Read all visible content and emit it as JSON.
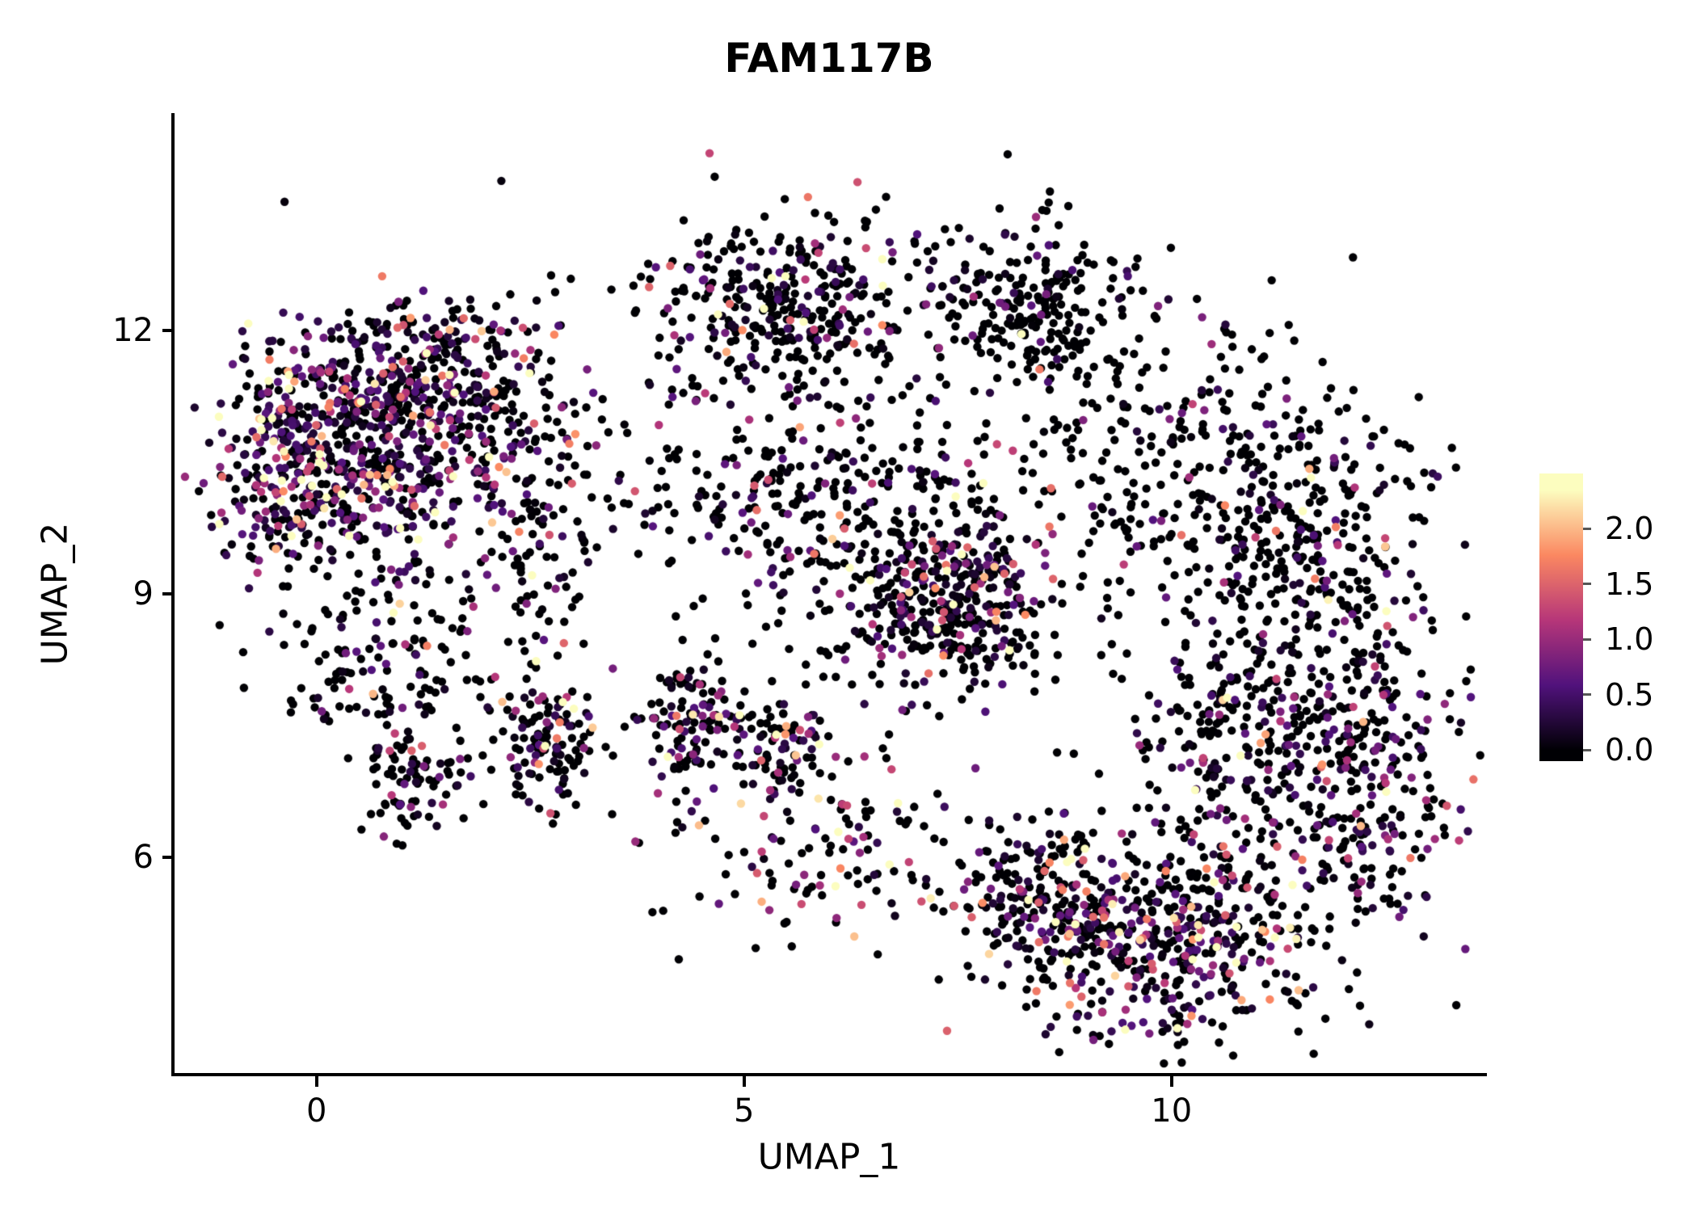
{
  "chart_data": {
    "type": "scatter",
    "title": "FAM117B",
    "xlabel": "UMAP_1",
    "ylabel": "UMAP_2",
    "xlim": [
      -1.68,
      13.67
    ],
    "ylim": [
      3.53,
      14.47
    ],
    "xtick_values": [
      0,
      5,
      10
    ],
    "xtick_labels": [
      "0",
      "5",
      "10"
    ],
    "ytick_values": [
      12,
      9,
      6
    ],
    "ytick_labels": [
      "12",
      "9",
      "6"
    ],
    "grid": false,
    "legend_position": "right",
    "color_encodes": "FAM117B expression level",
    "colormap": {
      "name": "magma",
      "anchors": [
        {
          "t": 0.0,
          "c": "#000004"
        },
        {
          "t": 0.25,
          "c": "#51127C"
        },
        {
          "t": 0.5,
          "c": "#B63679"
        },
        {
          "t": 0.75,
          "c": "#FB8861"
        },
        {
          "t": 1.0,
          "c": "#FCFDBF"
        }
      ]
    },
    "colorbar": {
      "tick_labels": [
        "2.0",
        "1.5",
        "1.0",
        "0.5",
        "0.0"
      ],
      "tick_values": [
        2.0,
        1.5,
        1.0,
        0.5,
        0.0
      ],
      "value_range": [
        -0.1,
        2.5
      ],
      "value_max": 2.35
    },
    "points": {
      "radius_px": 5.2,
      "seed": 42,
      "total_approx": 5110,
      "clusters": [
        {
          "name": "left-main-core",
          "cx": 0.7,
          "cy": 10.7,
          "sx": 0.8,
          "sy": 0.7,
          "n": 620,
          "zero_frac": 0.42,
          "expr_mean": 0.75
        },
        {
          "name": "left-west-edge",
          "cx": -0.5,
          "cy": 10.5,
          "sx": 0.35,
          "sy": 0.6,
          "n": 170,
          "zero_frac": 0.35,
          "expr_mean": 0.95
        },
        {
          "name": "left-north",
          "cx": 1.5,
          "cy": 11.5,
          "sx": 0.65,
          "sy": 0.45,
          "n": 200,
          "zero_frac": 0.5,
          "expr_mean": 0.7
        },
        {
          "name": "left-east-sparse",
          "cx": 2.6,
          "cy": 10.3,
          "sx": 0.55,
          "sy": 0.9,
          "n": 140,
          "zero_frac": 0.68,
          "expr_mean": 0.6
        },
        {
          "name": "left-south-arc",
          "cx": 0.9,
          "cy": 8.3,
          "sx": 0.75,
          "sy": 0.55,
          "n": 160,
          "zero_frac": 0.75,
          "expr_mean": 0.6
        },
        {
          "name": "left-south-clump",
          "cx": 1.1,
          "cy": 6.9,
          "sx": 0.3,
          "sy": 0.3,
          "n": 80,
          "zero_frac": 0.7,
          "expr_mean": 0.6
        },
        {
          "name": "low-left-clump",
          "cx": 2.7,
          "cy": 7.3,
          "sx": 0.35,
          "sy": 0.35,
          "n": 120,
          "zero_frac": 0.55,
          "expr_mean": 0.7
        },
        {
          "name": "top-middle",
          "cx": 5.5,
          "cy": 12.3,
          "sx": 0.85,
          "sy": 0.5,
          "n": 340,
          "zero_frac": 0.7,
          "expr_mean": 0.6
        },
        {
          "name": "mid-band",
          "cx": 5.7,
          "cy": 10.2,
          "sx": 1.1,
          "sy": 0.75,
          "n": 300,
          "zero_frac": 0.75,
          "expr_mean": 0.6
        },
        {
          "name": "mid-clump-a",
          "cx": 4.3,
          "cy": 7.5,
          "sx": 0.35,
          "sy": 0.4,
          "n": 110,
          "zero_frac": 0.5,
          "expr_mean": 0.8
        },
        {
          "name": "mid-clump-b",
          "cx": 5.4,
          "cy": 7.3,
          "sx": 0.35,
          "sy": 0.3,
          "n": 90,
          "zero_frac": 0.55,
          "expr_mean": 0.7
        },
        {
          "name": "mid-south-sparse",
          "cx": 6.0,
          "cy": 6.1,
          "sx": 0.9,
          "sy": 0.55,
          "n": 120,
          "zero_frac": 0.62,
          "expr_mean": 0.8
        },
        {
          "name": "mid-right-dense",
          "cx": 7.4,
          "cy": 8.9,
          "sx": 0.65,
          "sy": 0.5,
          "n": 400,
          "zero_frac": 0.6,
          "expr_mean": 0.65
        },
        {
          "name": "top-right",
          "cx": 8.4,
          "cy": 12.3,
          "sx": 0.6,
          "sy": 0.45,
          "n": 230,
          "zero_frac": 0.78,
          "expr_mean": 0.6
        },
        {
          "name": "right-sparse-top",
          "cx": 9.5,
          "cy": 10.5,
          "sx": 0.85,
          "sy": 0.85,
          "n": 160,
          "zero_frac": 0.85,
          "expr_mean": 0.6
        },
        {
          "name": "right-north",
          "cx": 11.3,
          "cy": 9.9,
          "sx": 0.8,
          "sy": 1.0,
          "n": 340,
          "zero_frac": 0.75,
          "expr_mean": 0.6
        },
        {
          "name": "right-east",
          "cx": 12.1,
          "cy": 7.1,
          "sx": 0.7,
          "sy": 1.1,
          "n": 450,
          "zero_frac": 0.62,
          "expr_mean": 0.7
        },
        {
          "name": "right-inner-west",
          "cx": 10.6,
          "cy": 7.3,
          "sx": 0.5,
          "sy": 0.9,
          "n": 190,
          "zero_frac": 0.7,
          "expr_mean": 0.65
        },
        {
          "name": "bottom-right-dense",
          "cx": 9.7,
          "cy": 5.1,
          "sx": 0.95,
          "sy": 0.6,
          "n": 550,
          "zero_frac": 0.48,
          "expr_mean": 0.85
        },
        {
          "name": "bottom-right-tail",
          "cx": 8.2,
          "cy": 5.7,
          "sx": 0.45,
          "sy": 0.4,
          "n": 110,
          "zero_frac": 0.5,
          "expr_mean": 0.8
        },
        {
          "name": "background-sparse",
          "cx": 6.3,
          "cy": 9.2,
          "sx": 3.2,
          "sy": 2.2,
          "n": 130,
          "zero_frac": 0.8,
          "expr_mean": 0.6
        }
      ]
    }
  }
}
